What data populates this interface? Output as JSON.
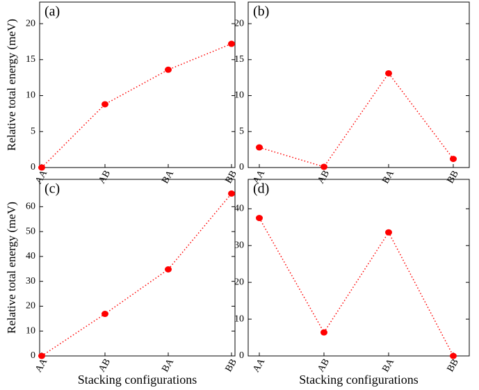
{
  "chart_data": [
    {
      "type": "line",
      "label": "(a)",
      "ylabel": "Relative total energy (meV)",
      "categories": [
        "AA",
        "AB",
        "BA",
        "BB"
      ],
      "values": [
        0,
        8.8,
        13.6,
        17.2
      ],
      "color": "#ff0000",
      "ylim": [
        0,
        23
      ],
      "yticks": [
        0,
        5,
        10,
        15,
        20
      ]
    },
    {
      "type": "line",
      "label": "(b)",
      "categories": [
        "AA",
        "AB",
        "BA",
        "BB"
      ],
      "values": [
        2.8,
        0.1,
        13.1,
        1.2
      ],
      "color": "#ff0000",
      "ylim": [
        0,
        23
      ],
      "yticks": [
        0,
        5,
        10,
        15,
        20
      ]
    },
    {
      "type": "line",
      "label": "(c)",
      "ylabel": "Relative total energy (meV)",
      "xlabel": "Stacking configurations",
      "categories": [
        "AA",
        "AB",
        "BA",
        "BB"
      ],
      "values": [
        0,
        16.9,
        34.8,
        65.3
      ],
      "color": "#ff0000",
      "ylim": [
        0,
        71
      ],
      "yticks": [
        0,
        10,
        20,
        30,
        40,
        50,
        60
      ]
    },
    {
      "type": "line",
      "label": "(d)",
      "xlabel": "Stacking configurations",
      "categories": [
        "AA",
        "AB",
        "BA",
        "BB"
      ],
      "values": [
        37.5,
        6.4,
        33.6,
        0
      ],
      "color": "#ff0000",
      "ylim": [
        0,
        48
      ],
      "yticks": [
        0,
        10,
        20,
        30,
        40
      ]
    }
  ]
}
